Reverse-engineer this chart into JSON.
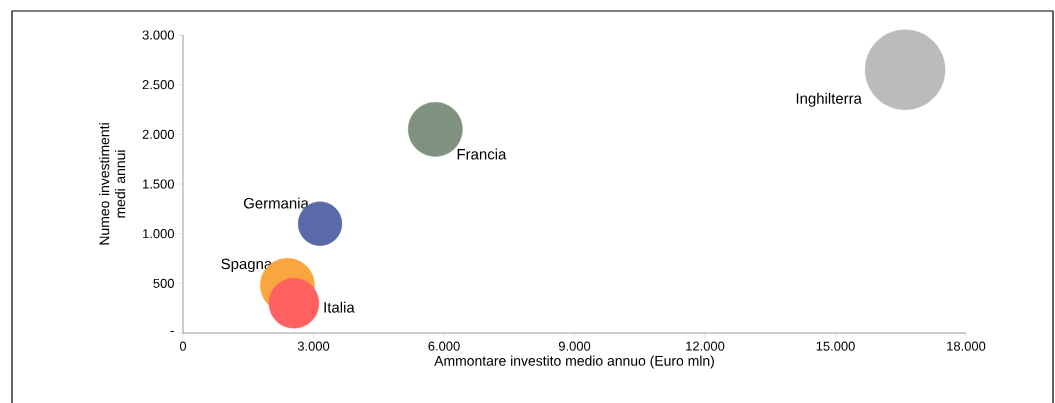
{
  "chart_data": {
    "type": "bubble",
    "xlabel": "Ammontare investito medio annuo (Euro mln)",
    "ylabel": "Numeo investimenti medi annui",
    "xlim": [
      0,
      18000
    ],
    "ylim": [
      0,
      3000
    ],
    "xticks": [
      {
        "value": 0,
        "label": "0"
      },
      {
        "value": 3000,
        "label": "3.000"
      },
      {
        "value": 6000,
        "label": "6.000"
      },
      {
        "value": 9000,
        "label": "9.000"
      },
      {
        "value": 12000,
        "label": "12.000"
      },
      {
        "value": 15000,
        "label": "15.000"
      },
      {
        "value": 18000,
        "label": "18.000"
      }
    ],
    "yticks": [
      {
        "value": 0,
        "label": "-"
      },
      {
        "value": 500,
        "label": "500"
      },
      {
        "value": 1000,
        "label": "1.000"
      },
      {
        "value": 1500,
        "label": "1.500"
      },
      {
        "value": 2000,
        "label": "2.000"
      },
      {
        "value": 2500,
        "label": "2.500"
      },
      {
        "value": 3000,
        "label": "3.000"
      }
    ],
    "grid": false,
    "series": [
      {
        "name": "Inghilterra",
        "color": "#bbbbbb",
        "x": [
          16600
        ],
        "values": [
          2650
        ],
        "sizes": [
          1
        ]
      },
      {
        "name": "Francia",
        "color": "#7f927f",
        "x": [
          5800
        ],
        "values": [
          2050
        ],
        "sizes": [
          0.46
        ]
      },
      {
        "name": "Germania",
        "color": "#5a6aa8",
        "x": [
          3150
        ],
        "values": [
          1100
        ],
        "sizes": [
          0.3
        ]
      },
      {
        "name": "Spagna",
        "color": "#f9a640",
        "x": [
          2400
        ],
        "values": [
          480
        ],
        "sizes": [
          0.46
        ]
      },
      {
        "name": "Italia",
        "color": "#ff6060",
        "x": [
          2550
        ],
        "values": [
          300
        ],
        "sizes": [
          0.39
        ]
      }
    ]
  }
}
